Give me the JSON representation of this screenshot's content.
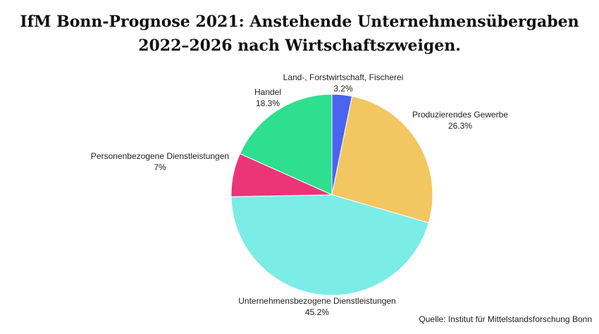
{
  "title": {
    "line1": "IfM Bonn-Prognose 2021: Anstehende Unternehmensübergaben",
    "line2": "2022–2026 nach Wirtschaftszweigen."
  },
  "source": "Quelle: Institut für Mittelstandsforschung Bonn",
  "chart_data": {
    "type": "pie",
    "slices": [
      {
        "label": "Land-, Forstwirtschaft, Fischerei",
        "value_label": "3.2%",
        "value": 3.2,
        "color": "#4a63f0"
      },
      {
        "label": "Produzierendes Gewerbe",
        "value_label": "26.3%",
        "value": 26.3,
        "color": "#f2c661"
      },
      {
        "label": "Unternehmensbezogene Dienstleistungen",
        "value_label": "45.2%",
        "value": 45.2,
        "color": "#7cece6"
      },
      {
        "label": "Personenbezogene Dienstleistungen",
        "value_label": "7%",
        "value": 7,
        "color": "#eb3576"
      },
      {
        "label": "Handel",
        "value_label": "18.3%",
        "value": 18.3,
        "color": "#2ddf8f"
      }
    ]
  }
}
